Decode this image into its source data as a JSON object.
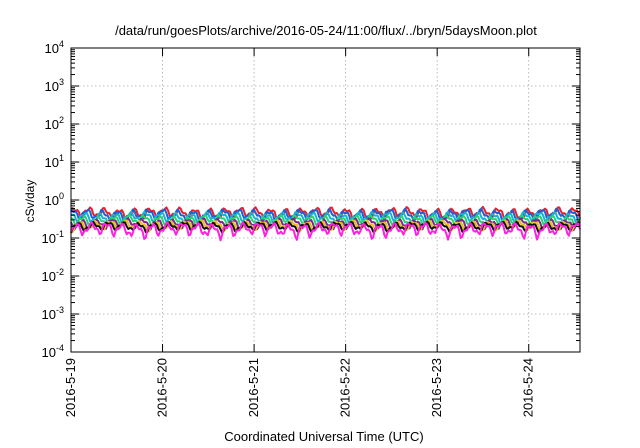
{
  "chart_data": {
    "type": "line",
    "title": "/data/run/goesPlots/archive/2016-05-24/11:00/flux/../bryn/5daysMoon.plot",
    "xlabel": "Coordinated Universal Time (UTC)",
    "ylabel": "cSv/day",
    "yscale": "log",
    "ylim": [
      0.0001,
      10000
    ],
    "xlim": [
      0,
      5.56
    ],
    "y_ticks": [
      {
        "base": "10",
        "exp": "-4"
      },
      {
        "base": "10",
        "exp": "-3"
      },
      {
        "base": "10",
        "exp": "-2"
      },
      {
        "base": "10",
        "exp": "-1"
      },
      {
        "base": "10",
        "exp": "0"
      },
      {
        "base": "10",
        "exp": "1"
      },
      {
        "base": "10",
        "exp": "2"
      },
      {
        "base": "10",
        "exp": "3"
      },
      {
        "base": "10",
        "exp": "4"
      }
    ],
    "x_ticks": [
      "2016-5-19",
      "2016-5-20",
      "2016-5-21",
      "2016-5-22",
      "2016-5-23",
      "2016-5-24"
    ],
    "grid": true,
    "series": [
      {
        "color": "#e8202a",
        "base": 0.46,
        "amp": 0.2,
        "phase": 0.3
      },
      {
        "color": "#1f5fd6",
        "base": 0.42,
        "amp": 0.18,
        "phase": 1.1
      },
      {
        "color": "#16b4d4",
        "base": 0.36,
        "amp": 0.14,
        "phase": 2.0
      },
      {
        "color": "#20d870",
        "base": 0.3,
        "amp": 0.11,
        "phase": 2.7
      },
      {
        "color": "#7a2a8a",
        "base": 0.245,
        "amp": 0.09,
        "phase": 3.3
      },
      {
        "color": "#e8c020",
        "base": 0.22,
        "amp": 0.08,
        "phase": 4.1
      },
      {
        "color": "#111111",
        "base": 0.205,
        "amp": 0.07,
        "phase": 4.9
      },
      {
        "color": "#ff20e0",
        "base": 0.175,
        "amp": 0.09,
        "phase": 5.6
      }
    ]
  }
}
